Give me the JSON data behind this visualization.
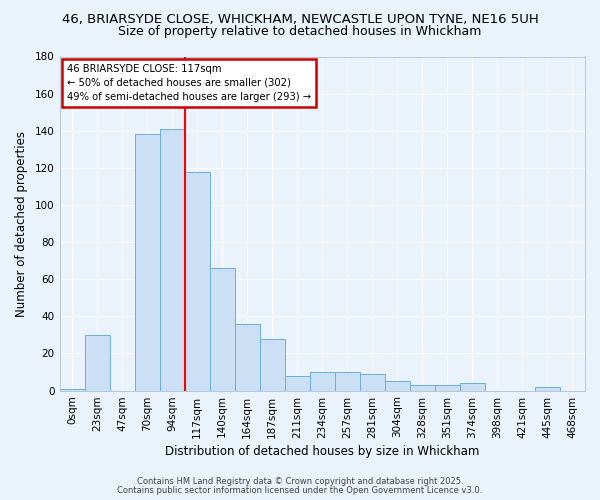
{
  "title_line1": "46, BRIARSYDE CLOSE, WHICKHAM, NEWCASTLE UPON TYNE, NE16 5UH",
  "title_line2": "Size of property relative to detached houses in Whickham",
  "xlabel": "Distribution of detached houses by size in Whickham",
  "ylabel": "Number of detached properties",
  "bin_labels": [
    "0sqm",
    "23sqm",
    "47sqm",
    "70sqm",
    "94sqm",
    "117sqm",
    "140sqm",
    "164sqm",
    "187sqm",
    "211sqm",
    "234sqm",
    "257sqm",
    "281sqm",
    "304sqm",
    "328sqm",
    "351sqm",
    "374sqm",
    "398sqm",
    "421sqm",
    "445sqm",
    "468sqm"
  ],
  "bar_values": [
    1,
    30,
    0,
    138,
    141,
    118,
    66,
    36,
    28,
    8,
    10,
    10,
    9,
    5,
    3,
    3,
    4,
    0,
    0,
    2,
    0
  ],
  "bar_color": "#cce0f5",
  "bar_edge_color": "#6aaed6",
  "red_line_bin": 5,
  "annotation_line1": "46 BRIARSYDE CLOSE: 117sqm",
  "annotation_line2": "← 50% of detached houses are smaller (302)",
  "annotation_line3": "49% of semi-detached houses are larger (293) →",
  "annotation_box_color": "#ffffff",
  "annotation_box_edge": "#cc0000",
  "ylim": [
    0,
    180
  ],
  "yticks": [
    0,
    20,
    40,
    60,
    80,
    100,
    120,
    140,
    160,
    180
  ],
  "footer_line1": "Contains HM Land Registry data © Crown copyright and database right 2025.",
  "footer_line2": "Contains public sector information licensed under the Open Government Licence v3.0.",
  "bg_color": "#eaf2fb",
  "plot_bg_color": "#eaf2fb",
  "grid_color": "#ffffff",
  "title_fontsize": 9.5,
  "subtitle_fontsize": 9,
  "axis_label_fontsize": 8.5,
  "tick_fontsize": 7.5,
  "footer_fontsize": 6
}
